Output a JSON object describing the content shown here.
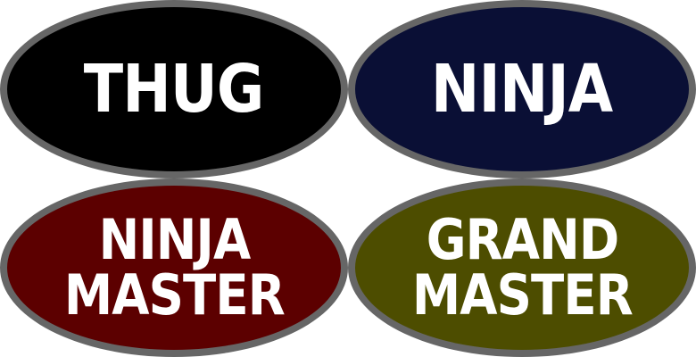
{
  "badges": [
    {
      "lines": [
        "THUG"
      ],
      "color": "#000000"
    },
    {
      "lines": [
        "NINJA"
      ],
      "color": "#0a0f35"
    },
    {
      "lines": [
        "NINJA",
        "MASTER"
      ],
      "color": "#5c0000"
    },
    {
      "lines": [
        "GRAND",
        "MASTER"
      ],
      "color": "#4d4d00"
    }
  ],
  "border_color": "#666666",
  "text_color": "#ffffff"
}
